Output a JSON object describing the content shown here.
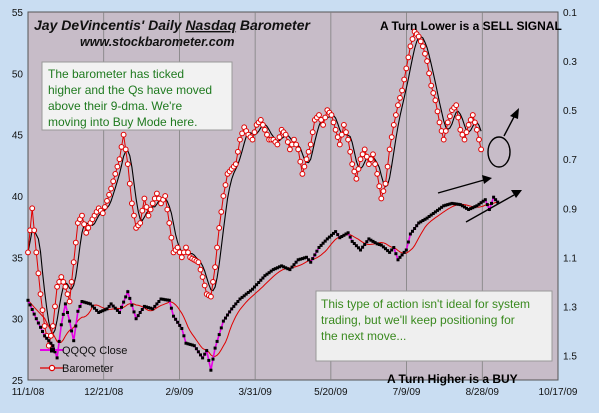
{
  "chart_data": {
    "type": "line",
    "title": "Jay DeVincentis' Daily Nasdaq Barometer",
    "title_prefix": "Jay DeVincentis' Daily ",
    "title_underlined": "Nasdaq",
    "title_suffix": " Barometer",
    "subtitle": "www.stockbarometer.com",
    "annotation_top": "A Turn Lower is a SELL  SIGNAL",
    "annotation_bottom": "A Turn Higher is a BUY",
    "note_top": [
      "The barometer has ticked",
      "higher and the Qs have moved",
      "above their 9-dma.  We're",
      "moving into Buy Mode here."
    ],
    "note_bottom": [
      "This type of action isn't ideal for system",
      "trading, but we'll keep positioning for",
      "the next move..."
    ],
    "x_tick_labels": [
      "11/1/08",
      "12/21/08",
      "2/9/09",
      "3/31/09",
      "5/20/09",
      "7/9/09",
      "8/28/09",
      "10/17/09"
    ],
    "y_left": {
      "range": [
        25,
        55
      ],
      "ticks": [
        "25",
        "30",
        "35",
        "40",
        "45",
        "50",
        "55"
      ]
    },
    "y_right": {
      "range": [
        1.6,
        0.1
      ],
      "ticks": [
        "0.1",
        "0.3",
        "0.5",
        "0.7",
        "0.9",
        "1.1",
        "1.3",
        "1.5"
      ],
      "inverted": true
    },
    "legend": {
      "position": "bottom-left",
      "entries": [
        "QQQQ Close",
        "Barometer"
      ]
    },
    "colors": {
      "qqqq": "#e600e6",
      "qqqq_markers": "#000000",
      "qqqq_ma": "#e00000",
      "barometer": "#e00000",
      "barometer_ma": "#000000",
      "plot_bg": "#c7bcc8",
      "gridline": "#808080",
      "arrow": "#000000"
    },
    "grid": {
      "vertical": true,
      "horizontal": false
    },
    "series": [
      {
        "name": "QQQQ Close",
        "axis": "left",
        "keypoints": [
          [
            0,
            31.5
          ],
          [
            4,
            30.0
          ],
          [
            8,
            28.6
          ],
          [
            12,
            27.8
          ],
          [
            14,
            26.8
          ],
          [
            16,
            29.5
          ],
          [
            18,
            31.2
          ],
          [
            20,
            29.8
          ],
          [
            22,
            28.2
          ],
          [
            24,
            30.6
          ],
          [
            26,
            31.4
          ],
          [
            30,
            31.2
          ],
          [
            34,
            30.5
          ],
          [
            38,
            30.8
          ],
          [
            40,
            31.2
          ],
          [
            44,
            30.5
          ],
          [
            48,
            32.2
          ],
          [
            52,
            30.0
          ],
          [
            56,
            31.0
          ],
          [
            60,
            30.8
          ],
          [
            64,
            31.6
          ],
          [
            68,
            31.5
          ],
          [
            70,
            30.2
          ],
          [
            74,
            29.2
          ],
          [
            76,
            28.0
          ],
          [
            80,
            27.8
          ],
          [
            84,
            26.8
          ],
          [
            86,
            27.4
          ],
          [
            88,
            25.8
          ],
          [
            90,
            27.6
          ],
          [
            94,
            29.8
          ],
          [
            98,
            30.8
          ],
          [
            102,
            31.6
          ],
          [
            108,
            32.4
          ],
          [
            114,
            33.5
          ],
          [
            118,
            34.0
          ],
          [
            122,
            34.3
          ],
          [
            126,
            34.0
          ],
          [
            130,
            34.8
          ],
          [
            134,
            35.0
          ],
          [
            136,
            34.6
          ],
          [
            140,
            35.8
          ],
          [
            144,
            36.5
          ],
          [
            148,
            37.1
          ],
          [
            150,
            36.6
          ],
          [
            154,
            37.0
          ],
          [
            156,
            36.3
          ],
          [
            160,
            35.6
          ],
          [
            164,
            36.5
          ],
          [
            168,
            36.1
          ],
          [
            170,
            36.0
          ],
          [
            174,
            35.4
          ],
          [
            176,
            35.8
          ],
          [
            178,
            34.8
          ],
          [
            182,
            35.6
          ],
          [
            184,
            36.9
          ],
          [
            188,
            37.8
          ],
          [
            192,
            38.2
          ],
          [
            196,
            38.7
          ],
          [
            200,
            39.2
          ],
          [
            204,
            39.4
          ],
          [
            208,
            39.3
          ],
          [
            212,
            38.9
          ],
          [
            216,
            39.2
          ],
          [
            220,
            39.7
          ],
          [
            222,
            38.9
          ],
          [
            224,
            39.9
          ],
          [
            226,
            39.5
          ]
        ]
      },
      {
        "name": "Barometer",
        "axis": "right",
        "keypoints": [
          [
            0,
            1.08
          ],
          [
            2,
            0.9
          ],
          [
            4,
            1.08
          ],
          [
            6,
            1.25
          ],
          [
            8,
            1.38
          ],
          [
            10,
            1.46
          ],
          [
            12,
            1.38
          ],
          [
            14,
            1.22
          ],
          [
            16,
            1.18
          ],
          [
            18,
            1.22
          ],
          [
            20,
            1.28
          ],
          [
            22,
            1.12
          ],
          [
            24,
            0.96
          ],
          [
            26,
            0.93
          ],
          [
            28,
            1.0
          ],
          [
            30,
            0.96
          ],
          [
            34,
            0.9
          ],
          [
            36,
            0.92
          ],
          [
            40,
            0.82
          ],
          [
            44,
            0.7
          ],
          [
            46,
            0.6
          ],
          [
            48,
            0.72
          ],
          [
            50,
            0.88
          ],
          [
            52,
            0.98
          ],
          [
            54,
            0.96
          ],
          [
            56,
            0.86
          ],
          [
            58,
            0.93
          ],
          [
            60,
            0.88
          ],
          [
            62,
            0.84
          ],
          [
            64,
            0.88
          ],
          [
            66,
            0.85
          ],
          [
            68,
            0.96
          ],
          [
            70,
            1.08
          ],
          [
            72,
            1.06
          ],
          [
            74,
            1.1
          ],
          [
            76,
            1.06
          ],
          [
            78,
            1.1
          ],
          [
            82,
            1.12
          ],
          [
            84,
            1.18
          ],
          [
            86,
            1.25
          ],
          [
            88,
            1.26
          ],
          [
            90,
            1.14
          ],
          [
            92,
            0.98
          ],
          [
            94,
            0.85
          ],
          [
            96,
            0.76
          ],
          [
            98,
            0.74
          ],
          [
            100,
            0.72
          ],
          [
            102,
            0.62
          ],
          [
            104,
            0.57
          ],
          [
            106,
            0.6
          ],
          [
            108,
            0.62
          ],
          [
            110,
            0.56
          ],
          [
            112,
            0.54
          ],
          [
            114,
            0.58
          ],
          [
            116,
            0.62
          ],
          [
            118,
            0.62
          ],
          [
            120,
            0.64
          ],
          [
            122,
            0.58
          ],
          [
            124,
            0.6
          ],
          [
            126,
            0.66
          ],
          [
            128,
            0.62
          ],
          [
            130,
            0.66
          ],
          [
            132,
            0.76
          ],
          [
            134,
            0.7
          ],
          [
            136,
            0.64
          ],
          [
            138,
            0.54
          ],
          [
            140,
            0.52
          ],
          [
            142,
            0.56
          ],
          [
            144,
            0.5
          ],
          [
            146,
            0.52
          ],
          [
            148,
            0.58
          ],
          [
            150,
            0.64
          ],
          [
            152,
            0.56
          ],
          [
            154,
            0.62
          ],
          [
            156,
            0.72
          ],
          [
            158,
            0.78
          ],
          [
            160,
            0.7
          ],
          [
            162,
            0.66
          ],
          [
            164,
            0.72
          ],
          [
            166,
            0.68
          ],
          [
            168,
            0.76
          ],
          [
            170,
            0.86
          ],
          [
            172,
            0.8
          ],
          [
            174,
            0.66
          ],
          [
            176,
            0.56
          ],
          [
            178,
            0.48
          ],
          [
            180,
            0.42
          ],
          [
            182,
            0.33
          ],
          [
            184,
            0.24
          ],
          [
            186,
            0.18
          ],
          [
            188,
            0.2
          ],
          [
            190,
            0.24
          ],
          [
            192,
            0.3
          ],
          [
            194,
            0.4
          ],
          [
            196,
            0.46
          ],
          [
            198,
            0.55
          ],
          [
            200,
            0.62
          ],
          [
            202,
            0.55
          ],
          [
            204,
            0.5
          ],
          [
            206,
            0.48
          ],
          [
            208,
            0.58
          ],
          [
            210,
            0.62
          ],
          [
            212,
            0.56
          ],
          [
            214,
            0.52
          ],
          [
            216,
            0.58
          ],
          [
            218,
            0.66
          ]
        ]
      }
    ],
    "x_days": 255
  }
}
